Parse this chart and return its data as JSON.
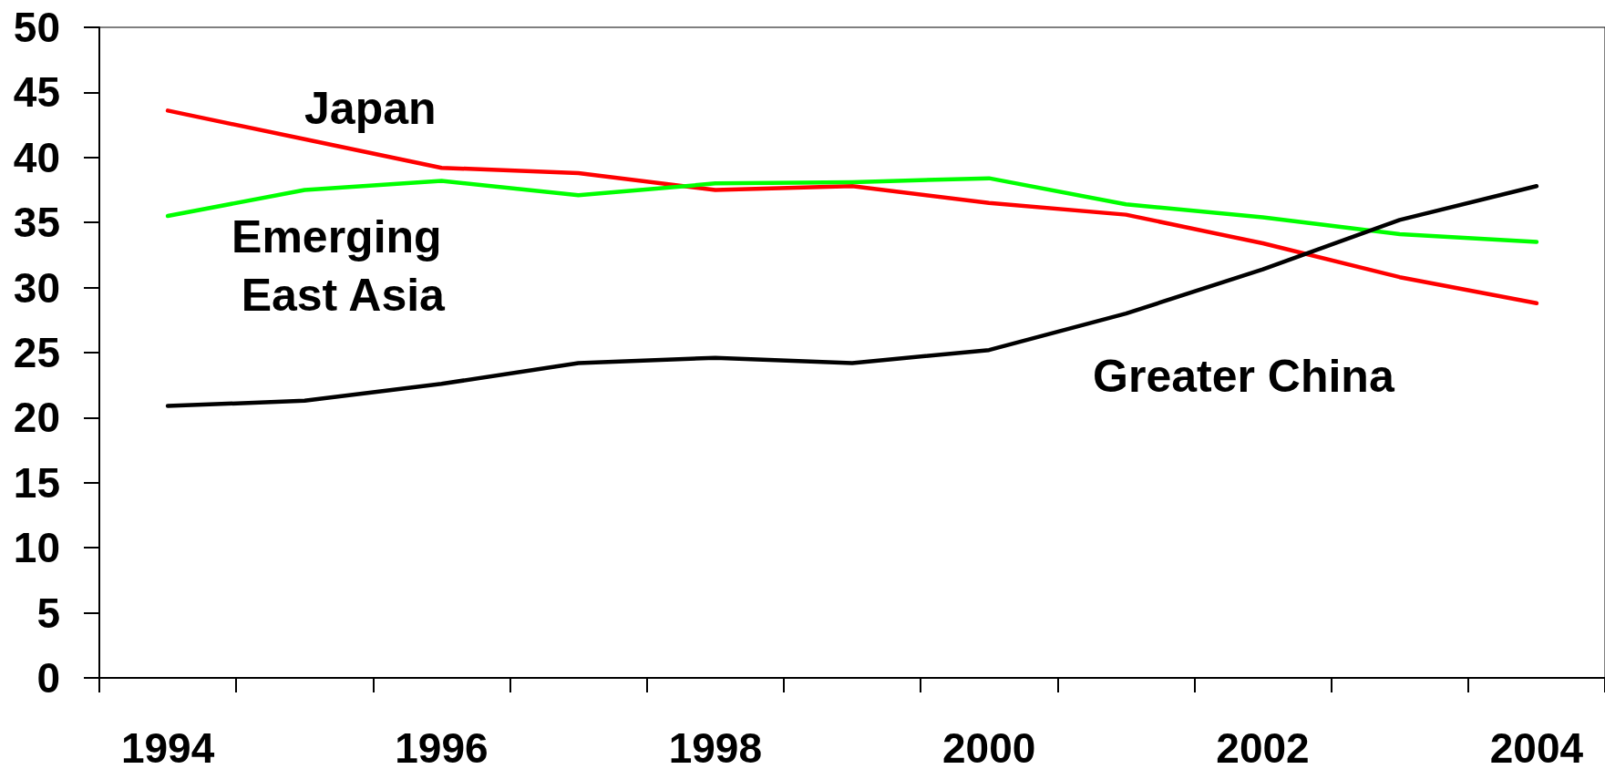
{
  "chart_data": {
    "type": "line",
    "categories": [
      "1994",
      null,
      "1996",
      null,
      "1998",
      null,
      "2000",
      null,
      "2002",
      null,
      "2004"
    ],
    "series": [
      {
        "name": "Japan",
        "color": "#ff0000",
        "values": [
          43.6,
          41.4,
          39.2,
          38.8,
          37.5,
          37.8,
          36.5,
          35.6,
          33.4,
          30.8,
          28.8
        ]
      },
      {
        "name": "Emerging East Asia",
        "color": "#00ff00",
        "values": [
          35.5,
          37.5,
          38.2,
          37.1,
          38.0,
          38.1,
          38.4,
          36.4,
          35.4,
          34.1,
          33.5
        ]
      },
      {
        "name": "Greater China",
        "color": "#000000",
        "values": [
          20.9,
          21.3,
          22.6,
          24.2,
          24.6,
          24.2,
          25.2,
          28.0,
          31.4,
          35.2,
          37.8
        ]
      }
    ],
    "ylim": [
      0,
      50
    ],
    "yticks": [
      0,
      5,
      10,
      15,
      20,
      25,
      30,
      35,
      40,
      45,
      50
    ],
    "marker": "none",
    "line_style": "solid"
  }
}
